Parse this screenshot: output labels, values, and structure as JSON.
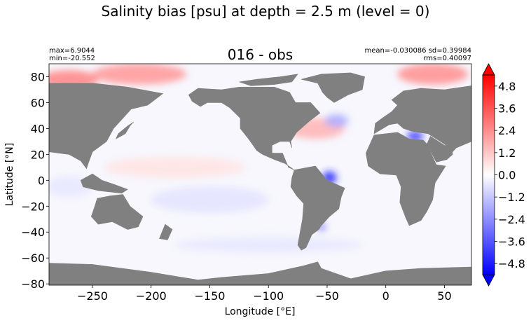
{
  "figure": {
    "suptitle": "Salinity bias [psu] at depth = 2.5 m (level = 0)"
  },
  "stats": {
    "max_line": "max=6.9044",
    "min_line": "min=-20.552",
    "mean_sd_line": "mean=-0.030086 sd=0.39984",
    "rms_line": "rms=0.40097"
  },
  "chart_data": {
    "type": "heatmap",
    "title": "016 - obs",
    "xlabel": "Longitude [°E]",
    "ylabel": "Latitude [°N]",
    "xlim": [
      -287,
      73
    ],
    "ylim": [
      -81,
      90
    ],
    "xticks": [
      -250,
      -200,
      -150,
      -100,
      -50,
      0,
      50
    ],
    "xtick_labels": [
      "−250",
      "−200",
      "−150",
      "−100",
      "−50",
      "0",
      "50"
    ],
    "yticks": [
      80,
      60,
      40,
      20,
      0,
      -20,
      -40,
      -60,
      -80
    ],
    "ytick_labels": [
      "80",
      "60",
      "40",
      "20",
      "0",
      "−20",
      "−40",
      "−60",
      "−80"
    ],
    "colormap": "bwr",
    "land_color": "#808080",
    "colorbar": {
      "vmin": -5.4,
      "vmax": 5.4,
      "extend": "both",
      "ticks": [
        4.8,
        3.6,
        2.4,
        1.2,
        0.0,
        -1.2,
        -2.4,
        -3.6,
        -4.8
      ],
      "tick_labels": [
        "4.8",
        "3.6",
        "2.4",
        "1.2",
        "0.0",
        "−1.2",
        "−2.4",
        "−3.6",
        "−4.8"
      ]
    },
    "grid": false,
    "land": [
      {
        "name": "north-america",
        "lonlat": [
          [
            -168,
            66
          ],
          [
            -160,
            71
          ],
          [
            -140,
            70
          ],
          [
            -125,
            72
          ],
          [
            -95,
            72
          ],
          [
            -82,
            68
          ],
          [
            -77,
            60
          ],
          [
            -64,
            60
          ],
          [
            -56,
            52
          ],
          [
            -66,
            45
          ],
          [
            -76,
            37
          ],
          [
            -81,
            30
          ],
          [
            -80,
            25
          ],
          [
            -82,
            30
          ],
          [
            -90,
            30
          ],
          [
            -97,
            27
          ],
          [
            -97,
            21
          ],
          [
            -88,
            21
          ],
          [
            -83,
            10
          ],
          [
            -78,
            8
          ],
          [
            -86,
            13
          ],
          [
            -95,
            16
          ],
          [
            -105,
            20
          ],
          [
            -110,
            23
          ],
          [
            -117,
            32
          ],
          [
            -124,
            40
          ],
          [
            -124,
            48
          ],
          [
            -133,
            56
          ],
          [
            -140,
            60
          ],
          [
            -152,
            60
          ],
          [
            -158,
            57
          ],
          [
            -165,
            61
          ]
        ]
      },
      {
        "name": "greenland",
        "lonlat": [
          [
            -72,
            78
          ],
          [
            -55,
            82
          ],
          [
            -30,
            83
          ],
          [
            -18,
            80
          ],
          [
            -20,
            70
          ],
          [
            -32,
            66
          ],
          [
            -44,
            60
          ],
          [
            -50,
            64
          ],
          [
            -54,
            68
          ],
          [
            -58,
            75
          ]
        ]
      },
      {
        "name": "arctic-islands",
        "lonlat": [
          [
            -125,
            76
          ],
          [
            -110,
            78
          ],
          [
            -90,
            80
          ],
          [
            -75,
            82
          ],
          [
            -80,
            76
          ],
          [
            -95,
            74
          ],
          [
            -115,
            73
          ]
        ]
      },
      {
        "name": "south-america",
        "lonlat": [
          [
            -78,
            8
          ],
          [
            -60,
            11
          ],
          [
            -50,
            0
          ],
          [
            -35,
            -6
          ],
          [
            -38,
            -13
          ],
          [
            -40,
            -22
          ],
          [
            -48,
            -28
          ],
          [
            -55,
            -35
          ],
          [
            -57,
            -38
          ],
          [
            -63,
            -42
          ],
          [
            -65,
            -46
          ],
          [
            -68,
            -52
          ],
          [
            -72,
            -54
          ],
          [
            -75,
            -50
          ],
          [
            -73,
            -40
          ],
          [
            -71,
            -30
          ],
          [
            -70,
            -18
          ],
          [
            -76,
            -12
          ],
          [
            -81,
            -5
          ],
          [
            -80,
            2
          ]
        ]
      },
      {
        "name": "africa",
        "lonlat": [
          [
            -17,
            21
          ],
          [
            -10,
            35
          ],
          [
            10,
            37
          ],
          [
            20,
            32
          ],
          [
            32,
            31
          ],
          [
            35,
            28
          ],
          [
            43,
            12
          ],
          [
            51,
            11
          ],
          [
            42,
            -2
          ],
          [
            40,
            -15
          ],
          [
            35,
            -24
          ],
          [
            30,
            -31
          ],
          [
            20,
            -35
          ],
          [
            17,
            -29
          ],
          [
            12,
            -17
          ],
          [
            13,
            -5
          ],
          [
            9,
            4
          ],
          [
            -5,
            5
          ],
          [
            -15,
            11
          ]
        ]
      },
      {
        "name": "eurasia",
        "lonlat": [
          [
            -10,
            36
          ],
          [
            -9,
            44
          ],
          [
            -3,
            48
          ],
          [
            5,
            53
          ],
          [
            10,
            58
          ],
          [
            5,
            62
          ],
          [
            15,
            69
          ],
          [
            30,
            71
          ],
          [
            50,
            70
          ],
          [
            73,
            73
          ],
          [
            73,
            30
          ],
          [
            60,
            25
          ],
          [
            57,
            22
          ],
          [
            50,
            28
          ],
          [
            36,
            36
          ],
          [
            28,
            37
          ],
          [
            22,
            38
          ],
          [
            15,
            40
          ],
          [
            10,
            44
          ],
          [
            3,
            43
          ]
        ]
      },
      {
        "name": "arabia",
        "lonlat": [
          [
            35,
            28
          ],
          [
            43,
            14
          ],
          [
            52,
            16
          ],
          [
            57,
            20
          ],
          [
            56,
            25
          ],
          [
            50,
            27
          ],
          [
            38,
            34
          ]
        ]
      },
      {
        "name": "australia",
        "lonlat": [
          [
            -246,
            -14
          ],
          [
            -235,
            -12
          ],
          [
            -224,
            -11
          ],
          [
            -218,
            -20
          ],
          [
            -207,
            -28
          ],
          [
            -211,
            -36
          ],
          [
            -220,
            -38
          ],
          [
            -233,
            -32
          ],
          [
            -245,
            -34
          ],
          [
            -251,
            -28
          ],
          [
            -248,
            -20
          ]
        ]
      },
      {
        "name": "asia-west-edge",
        "lonlat": [
          [
            -287,
            75
          ],
          [
            -250,
            75
          ],
          [
            -220,
            72
          ],
          [
            -190,
            67
          ],
          [
            -200,
            60
          ],
          [
            -203,
            58
          ],
          [
            -217,
            55
          ],
          [
            -222,
            50
          ],
          [
            -232,
            40
          ],
          [
            -238,
            30
          ],
          [
            -250,
            22
          ],
          [
            -254,
            12
          ],
          [
            -255,
            9
          ],
          [
            -260,
            15
          ],
          [
            -270,
            20
          ],
          [
            -287,
            22
          ]
        ]
      },
      {
        "name": "maritime-continent",
        "lonlat": [
          [
            -260,
            0
          ],
          [
            -250,
            5
          ],
          [
            -242,
            0
          ],
          [
            -232,
            -3
          ],
          [
            -220,
            -7
          ],
          [
            -225,
            -10
          ],
          [
            -245,
            -8
          ],
          [
            -258,
            -5
          ]
        ]
      },
      {
        "name": "japan",
        "lonlat": [
          [
            -230,
            32
          ],
          [
            -222,
            36
          ],
          [
            -218,
            42
          ],
          [
            -215,
            45
          ],
          [
            -220,
            42
          ],
          [
            -228,
            36
          ]
        ]
      },
      {
        "name": "new-zealand",
        "lonlat": [
          [
            -188,
            -34
          ],
          [
            -182,
            -38
          ],
          [
            -186,
            -46
          ],
          [
            -193,
            -45
          ]
        ]
      },
      {
        "name": "antarctica",
        "lonlat": [
          [
            -287,
            -64
          ],
          [
            -250,
            -65
          ],
          [
            -200,
            -71
          ],
          [
            -160,
            -77
          ],
          [
            -140,
            -75
          ],
          [
            -100,
            -72
          ],
          [
            -70,
            -66
          ],
          [
            -58,
            -63
          ],
          [
            -55,
            -68
          ],
          [
            -30,
            -76
          ],
          [
            0,
            -70
          ],
          [
            30,
            -68
          ],
          [
            73,
            -67
          ],
          [
            73,
            -90
          ],
          [
            -287,
            -90
          ]
        ]
      }
    ],
    "anomalies": [
      {
        "name": "arctic-positive",
        "lon": -210,
        "lat": 82,
        "value": 2.2,
        "rx": 40,
        "ry": 8
      },
      {
        "name": "arctic-positive-east",
        "lon": 40,
        "lat": 82,
        "value": 2.4,
        "rx": 30,
        "ry": 8
      },
      {
        "name": "arctic-positive-west",
        "lon": -270,
        "lat": 78,
        "value": 2.6,
        "rx": 25,
        "ry": 7
      },
      {
        "name": "gulf-stream-positive",
        "lon": -60,
        "lat": 40,
        "value": 1.6,
        "rx": 25,
        "ry": 8
      },
      {
        "name": "labrador-negative",
        "lon": -42,
        "lat": 46,
        "value": -1.8,
        "rx": 10,
        "ry": 5
      },
      {
        "name": "amazon-plume-negative",
        "lon": -48,
        "lat": 2,
        "value": -4.6,
        "rx": 6,
        "ry": 5
      },
      {
        "name": "med-negative",
        "lon": 25,
        "lat": 34,
        "value": -4.2,
        "rx": 7,
        "ry": 4
      },
      {
        "name": "la-plata-negative",
        "lon": -55,
        "lat": -36,
        "value": -2.6,
        "rx": 4,
        "ry": 3
      },
      {
        "name": "pacific-tropics-positive",
        "lon": -180,
        "lat": 10,
        "value": 0.6,
        "rx": 60,
        "ry": 8
      },
      {
        "name": "pacific-south-negative",
        "lon": -150,
        "lat": -15,
        "value": -0.6,
        "rx": 50,
        "ry": 10
      },
      {
        "name": "indian-negative",
        "lon": -270,
        "lat": -5,
        "value": -0.5,
        "rx": 20,
        "ry": 8
      },
      {
        "name": "southern-ocean-negative",
        "lon": -100,
        "lat": -50,
        "value": -0.5,
        "rx": 80,
        "ry": 6
      }
    ]
  }
}
